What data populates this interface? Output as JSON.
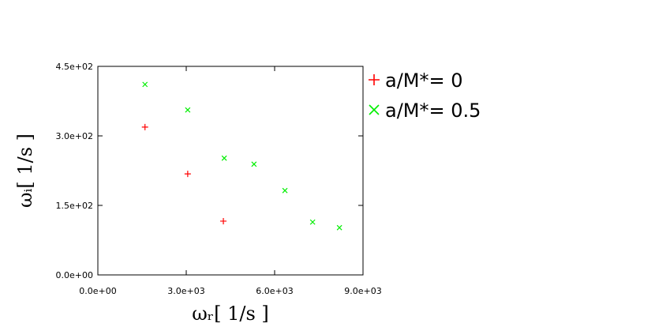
{
  "chart_data": {
    "type": "scatter",
    "x_label": "ωᵣ[ 1/s ]",
    "y_label": "ωᵢ[ 1/s ]",
    "xlim": [
      0,
      9000
    ],
    "ylim": [
      0,
      450
    ],
    "xticks": [
      {
        "value": 0,
        "label": "0.0e+00"
      },
      {
        "value": 3000,
        "label": "3.0e+03"
      },
      {
        "value": 6000,
        "label": "6.0e+03"
      },
      {
        "value": 9000,
        "label": "9.0e+03"
      }
    ],
    "yticks": [
      {
        "value": 0,
        "label": "0.0e+00"
      },
      {
        "value": 150,
        "label": "1.5e+02"
      },
      {
        "value": 300,
        "label": "3.0e+02"
      },
      {
        "value": 450,
        "label": "4.5e+02"
      }
    ],
    "series": [
      {
        "name": "a/M*= 0",
        "color": "#ff0000",
        "marker": "+",
        "x": [
          1600,
          3050,
          4260
        ],
        "values": [
          319,
          218,
          116
        ]
      },
      {
        "name": "a/M*= 0.5",
        "color": "#00ee00",
        "marker": "x",
        "x": [
          1600,
          3050,
          4290,
          5300,
          6350,
          7290,
          8200
        ],
        "values": [
          411,
          356,
          252,
          239,
          182,
          114,
          102
        ]
      }
    ]
  }
}
